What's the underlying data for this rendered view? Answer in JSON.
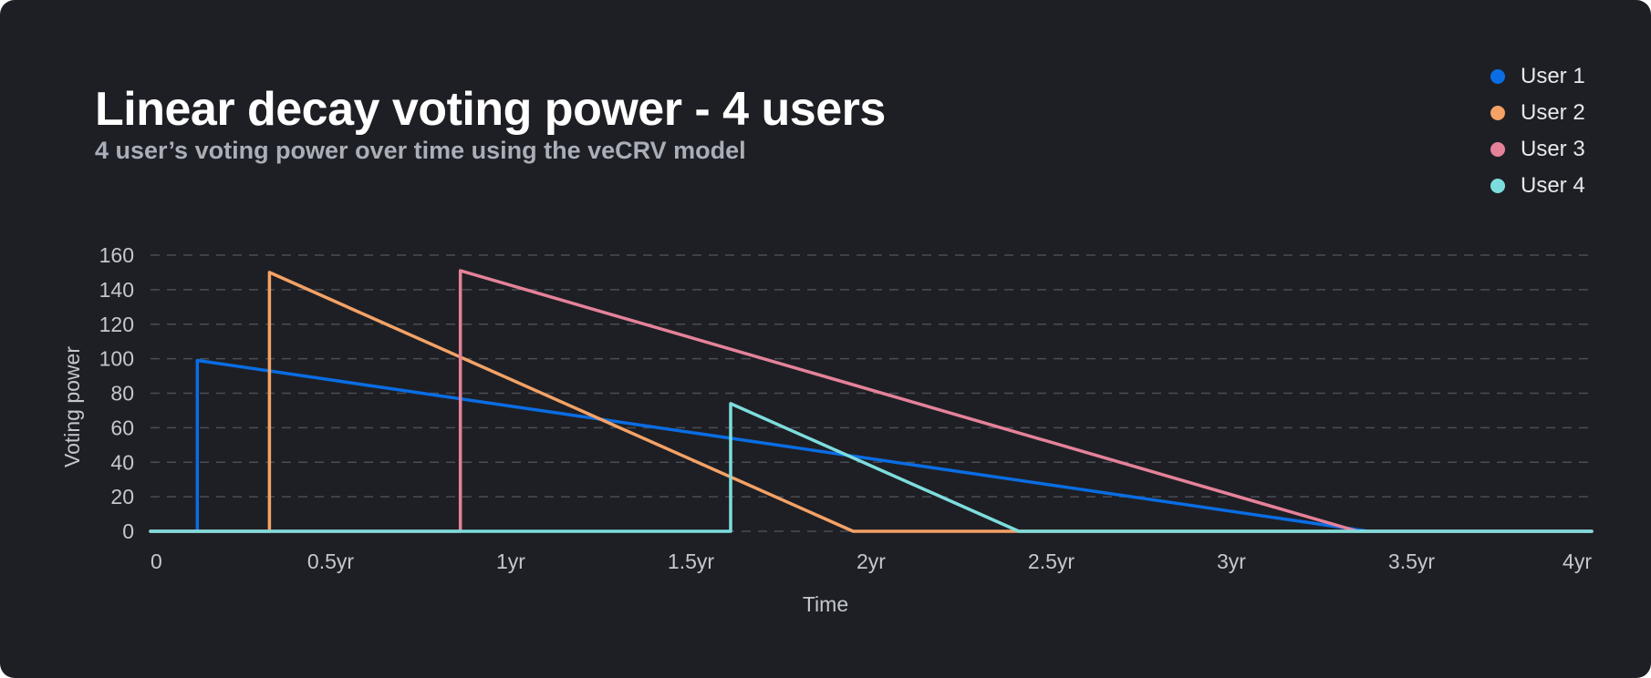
{
  "header": {
    "title": "Linear decay voting power - 4 users",
    "subtitle": "4 user’s voting power over time using the veCRV model"
  },
  "chart_data": {
    "type": "line",
    "title": "Linear decay voting power - 4 users",
    "subtitle": "4 user’s voting power over time using the veCRV model",
    "xlabel": "Time",
    "ylabel": "Voting power",
    "xlim": [
      0,
      4
    ],
    "ylim": [
      0,
      160
    ],
    "x_unit": "years",
    "x_ticks": [
      {
        "value": 0,
        "label": "0"
      },
      {
        "value": 0.5,
        "label": "0.5yr"
      },
      {
        "value": 1,
        "label": "1yr"
      },
      {
        "value": 1.5,
        "label": "1.5yr"
      },
      {
        "value": 2,
        "label": "2yr"
      },
      {
        "value": 2.5,
        "label": "2.5yr"
      },
      {
        "value": 3,
        "label": "3yr"
      },
      {
        "value": 3.5,
        "label": "3.5yr"
      },
      {
        "value": 4,
        "label": "4yr"
      }
    ],
    "y_ticks": [
      {
        "value": 0,
        "label": "0"
      },
      {
        "value": 20,
        "label": "20"
      },
      {
        "value": 40,
        "label": "40"
      },
      {
        "value": 60,
        "label": "60"
      },
      {
        "value": 80,
        "label": "80"
      },
      {
        "value": 100,
        "label": "100"
      },
      {
        "value": 120,
        "label": "120"
      },
      {
        "value": 140,
        "label": "140"
      },
      {
        "value": 160,
        "label": "160"
      }
    ],
    "grid": "horizontal-dashed",
    "legend_position": "top-right",
    "series": [
      {
        "name": "User 1",
        "color": "#0a6de3",
        "points": [
          [
            0,
            0
          ],
          [
            0.13,
            0
          ],
          [
            0.13,
            99
          ],
          [
            3.38,
            0
          ],
          [
            4,
            0
          ]
        ]
      },
      {
        "name": "User 2",
        "color": "#f4a266",
        "points": [
          [
            0,
            0
          ],
          [
            0.33,
            0
          ],
          [
            0.33,
            150
          ],
          [
            1.95,
            0
          ],
          [
            4,
            0
          ]
        ]
      },
      {
        "name": "User 3",
        "color": "#e5829a",
        "points": [
          [
            0,
            0
          ],
          [
            0.86,
            0
          ],
          [
            0.86,
            151
          ],
          [
            3.35,
            0
          ],
          [
            4,
            0
          ]
        ]
      },
      {
        "name": "User 4",
        "color": "#7ddddd",
        "points": [
          [
            0,
            0
          ],
          [
            1.61,
            0
          ],
          [
            1.61,
            74
          ],
          [
            2.41,
            0
          ],
          [
            4,
            0
          ]
        ]
      }
    ]
  }
}
